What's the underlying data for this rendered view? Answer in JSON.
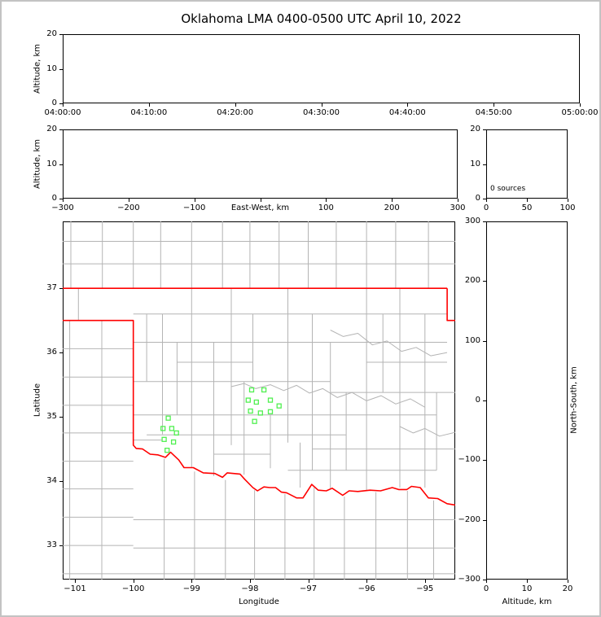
{
  "title": "Oklahoma LMA 0400-0500 UTC April 10, 2022",
  "colors": {
    "state_border": "#ff0000",
    "county_line": "#b4b4b4",
    "station_marker": "#50f050",
    "axis": "#000000",
    "figure_border": "#c3c3c3"
  },
  "chart_data": [
    {
      "id": "time_height",
      "type": "scatter",
      "ylabel": "Altitude, km",
      "xmin": 0,
      "xmax": 3600,
      "ymin": 0,
      "ymax": 20,
      "xticks": [
        {
          "v": 0,
          "label": "04:00:00"
        },
        {
          "v": 600,
          "label": "04:10:00"
        },
        {
          "v": 1200,
          "label": "04:20:00"
        },
        {
          "v": 1800,
          "label": "04:30:00"
        },
        {
          "v": 2400,
          "label": "04:40:00"
        },
        {
          "v": 3000,
          "label": "04:50:00"
        },
        {
          "v": 3600,
          "label": "05:00:00"
        }
      ],
      "yticks": [
        {
          "v": 0,
          "label": "0"
        },
        {
          "v": 10,
          "label": "10"
        },
        {
          "v": 20,
          "label": "20"
        }
      ],
      "points": []
    },
    {
      "id": "ew_height",
      "type": "scatter",
      "xlabel_inline": "East-West, km",
      "xlabel_inline_at": 0,
      "ylabel": "Altitude, km",
      "xmin": -300,
      "xmax": 300,
      "ymin": 0,
      "ymax": 20,
      "xticks": [
        {
          "v": -300,
          "label": "−300"
        },
        {
          "v": -200,
          "label": "−200"
        },
        {
          "v": -100,
          "label": "−100"
        },
        {
          "v": 0,
          "label": null
        },
        {
          "v": 100,
          "label": "100"
        },
        {
          "v": 200,
          "label": "200"
        },
        {
          "v": 300,
          "label": "300"
        }
      ],
      "yticks": [
        {
          "v": 0,
          "label": "0"
        },
        {
          "v": 10,
          "label": "10"
        },
        {
          "v": 20,
          "label": "20"
        }
      ],
      "points": []
    },
    {
      "id": "hist",
      "type": "line",
      "xmin": 0,
      "xmax": 100,
      "ymin": 0,
      "ymax": 20,
      "xticks": [
        {
          "v": 0,
          "label": "0"
        },
        {
          "v": 50,
          "label": "50"
        },
        {
          "v": 100,
          "label": "100"
        }
      ],
      "yticks": [
        {
          "v": 0,
          "label": "0"
        },
        {
          "v": 10,
          "label": "10"
        },
        {
          "v": 20,
          "label": "20"
        }
      ],
      "annotation": "0 sources",
      "points": []
    },
    {
      "id": "map",
      "type": "scatter",
      "xlabel": "Longitude",
      "ylabel": "Latitude",
      "xmin": -101.21,
      "xmax": -94.48,
      "ymin": 32.47,
      "ymax": 38.04,
      "xticks": [
        {
          "v": -101,
          "label": "−101"
        },
        {
          "v": -100,
          "label": "−100"
        },
        {
          "v": -99,
          "label": "−99"
        },
        {
          "v": -98,
          "label": "−98"
        },
        {
          "v": -97,
          "label": "−97"
        },
        {
          "v": -96,
          "label": "−96"
        },
        {
          "v": -95,
          "label": "−95"
        }
      ],
      "yticks": [
        {
          "v": 33,
          "label": "33"
        },
        {
          "v": 34,
          "label": "34"
        },
        {
          "v": 35,
          "label": "35"
        },
        {
          "v": 36,
          "label": "36"
        },
        {
          "v": 37,
          "label": "37"
        }
      ],
      "stations": [
        [
          -97.97,
          35.42
        ],
        [
          -97.76,
          35.42
        ],
        [
          -98.03,
          35.26
        ],
        [
          -97.89,
          35.23
        ],
        [
          -97.65,
          35.26
        ],
        [
          -97.99,
          35.09
        ],
        [
          -97.82,
          35.06
        ],
        [
          -97.65,
          35.08
        ],
        [
          -97.5,
          35.17
        ],
        [
          -97.92,
          34.93
        ],
        [
          -99.4,
          34.98
        ],
        [
          -99.49,
          34.82
        ],
        [
          -99.34,
          34.82
        ],
        [
          -99.26,
          34.75
        ],
        [
          -99.47,
          34.65
        ],
        [
          -99.31,
          34.61
        ],
        [
          -99.42,
          34.48
        ]
      ],
      "state_border": [
        [
          [
            -101.21,
            37.0
          ],
          [
            -94.618,
            37.0
          ]
        ],
        [
          [
            -94.618,
            37.0
          ],
          [
            -94.618,
            36.5
          ],
          [
            -94.48,
            36.5
          ]
        ],
        [
          [
            -101.21,
            36.5
          ],
          [
            -100.0,
            36.5
          ],
          [
            -100.0,
            34.56
          ],
          [
            -99.95,
            34.51
          ],
          [
            -99.84,
            34.5
          ],
          [
            -99.71,
            34.42
          ],
          [
            -99.58,
            34.41
          ],
          [
            -99.45,
            34.37
          ],
          [
            -99.36,
            34.45
          ],
          [
            -99.22,
            34.33
          ],
          [
            -99.13,
            34.21
          ],
          [
            -98.97,
            34.21
          ],
          [
            -98.8,
            34.13
          ],
          [
            -98.6,
            34.12
          ],
          [
            -98.47,
            34.06
          ],
          [
            -98.39,
            34.13
          ],
          [
            -98.17,
            34.11
          ],
          [
            -98.09,
            34.03
          ],
          [
            -97.95,
            33.9
          ],
          [
            -97.87,
            33.85
          ],
          [
            -97.76,
            33.91
          ],
          [
            -97.66,
            33.9
          ],
          [
            -97.56,
            33.9
          ],
          [
            -97.46,
            33.83
          ],
          [
            -97.37,
            33.82
          ],
          [
            -97.2,
            33.74
          ],
          [
            -97.09,
            33.74
          ],
          [
            -96.94,
            33.95
          ],
          [
            -96.83,
            33.86
          ],
          [
            -96.69,
            33.85
          ],
          [
            -96.59,
            33.89
          ],
          [
            -96.41,
            33.78
          ],
          [
            -96.3,
            33.85
          ],
          [
            -96.15,
            33.84
          ],
          [
            -95.94,
            33.86
          ],
          [
            -95.76,
            33.85
          ],
          [
            -95.56,
            33.9
          ],
          [
            -95.45,
            33.87
          ],
          [
            -95.31,
            33.87
          ],
          [
            -95.23,
            33.92
          ],
          [
            -95.08,
            33.9
          ],
          [
            -94.94,
            33.74
          ],
          [
            -94.78,
            33.73
          ],
          [
            -94.62,
            33.65
          ],
          [
            -94.48,
            33.63
          ]
        ]
      ],
      "county_v": [
        [
          -101.07,
          37.0,
          38.04
        ],
        [
          -100.53,
          37.0,
          38.04
        ],
        [
          -100.0,
          37.0,
          38.04
        ],
        [
          -99.53,
          37.0,
          38.04
        ],
        [
          -99.0,
          37.0,
          38.04
        ],
        [
          -98.47,
          37.0,
          38.04
        ],
        [
          -98.0,
          37.0,
          38.04
        ],
        [
          -97.5,
          37.0,
          38.04
        ],
        [
          -97.0,
          37.0,
          38.04
        ],
        [
          -96.52,
          37.0,
          38.04
        ],
        [
          -96.0,
          37.0,
          38.04
        ],
        [
          -95.5,
          37.0,
          38.04
        ],
        [
          -94.94,
          37.0,
          38.04
        ],
        [
          -100.94,
          36.5,
          37.0
        ],
        [
          -101.09,
          32.47,
          36.5
        ],
        [
          -100.54,
          32.47,
          36.5
        ],
        [
          -99.47,
          32.47,
          34.35
        ],
        [
          -98.95,
          32.47,
          34.15
        ],
        [
          -98.42,
          32.47,
          34.02
        ],
        [
          -97.92,
          32.47,
          33.86
        ],
        [
          -97.4,
          32.47,
          33.8
        ],
        [
          -96.9,
          32.47,
          33.9
        ],
        [
          -96.38,
          32.47,
          33.76
        ],
        [
          -95.84,
          32.47,
          33.83
        ],
        [
          -95.3,
          32.47,
          33.85
        ],
        [
          -94.85,
          32.47,
          33.7
        ],
        [
          -99.77,
          35.55,
          36.6
        ],
        [
          -99.5,
          34.73,
          36.6
        ],
        [
          -99.25,
          35.03,
          36.16
        ],
        [
          -99.0,
          34.21,
          37.0
        ],
        [
          -98.62,
          34.08,
          36.16
        ],
        [
          -98.32,
          34.56,
          37.0
        ],
        [
          -98.1,
          34.1,
          35.55
        ],
        [
          -97.95,
          35.55,
          36.6
        ],
        [
          -97.65,
          34.2,
          35.03
        ],
        [
          -97.35,
          34.6,
          37.0
        ],
        [
          -97.14,
          33.9,
          34.6
        ],
        [
          -96.93,
          34.17,
          36.6
        ],
        [
          -96.62,
          33.87,
          36.16
        ],
        [
          -96.35,
          34.17,
          35.38
        ],
        [
          -96.0,
          33.85,
          37.0
        ],
        [
          -95.72,
          35.38,
          36.6
        ],
        [
          -95.43,
          33.9,
          37.0
        ],
        [
          -95.0,
          33.9,
          36.6
        ],
        [
          -94.8,
          34.17,
          35.38
        ]
      ],
      "county_h": [
        [
          37.38,
          -101.21,
          -94.48
        ],
        [
          37.73,
          -101.21,
          -94.48
        ],
        [
          36.06,
          -101.21,
          -100.0
        ],
        [
          35.62,
          -101.21,
          -100.0
        ],
        [
          35.18,
          -101.21,
          -100.0
        ],
        [
          34.75,
          -101.21,
          -100.0
        ],
        [
          34.31,
          -101.21,
          -100.0
        ],
        [
          33.88,
          -101.21,
          -100.0
        ],
        [
          33.44,
          -101.21,
          -100.0
        ],
        [
          33.0,
          -101.21,
          -100.0
        ],
        [
          32.56,
          -101.21,
          -100.0
        ],
        [
          33.4,
          -100.0,
          -94.48
        ],
        [
          32.96,
          -100.0,
          -94.48
        ],
        [
          32.56,
          -100.0,
          -94.48
        ],
        [
          36.6,
          -100.0,
          -94.62
        ],
        [
          36.16,
          -100.0,
          -94.62
        ],
        [
          35.85,
          -99.25,
          -97.95
        ],
        [
          35.85,
          -96.0,
          -94.62
        ],
        [
          35.55,
          -100.0,
          -96.62
        ],
        [
          35.38,
          -96.62,
          -94.48
        ],
        [
          35.03,
          -100.0,
          -94.8
        ],
        [
          34.72,
          -99.77,
          -96.35
        ],
        [
          34.5,
          -96.93,
          -94.48
        ],
        [
          34.17,
          -97.35,
          -94.8
        ],
        [
          34.42,
          -98.62,
          -97.65
        ],
        [
          34.64,
          -100.0,
          -99.5
        ]
      ],
      "county_paths": [
        [
          [
            -98.32,
            35.47
          ],
          [
            -98.1,
            35.52
          ],
          [
            -97.9,
            35.44
          ],
          [
            -97.65,
            35.5
          ],
          [
            -97.42,
            35.41
          ],
          [
            -97.2,
            35.49
          ],
          [
            -96.98,
            35.37
          ],
          [
            -96.75,
            35.44
          ],
          [
            -96.5,
            35.3
          ],
          [
            -96.25,
            35.38
          ],
          [
            -96.0,
            35.25
          ],
          [
            -95.75,
            35.33
          ],
          [
            -95.5,
            35.2
          ],
          [
            -95.25,
            35.28
          ],
          [
            -95.0,
            35.15
          ]
        ],
        [
          [
            -96.62,
            36.35
          ],
          [
            -96.4,
            36.25
          ],
          [
            -96.15,
            36.3
          ],
          [
            -95.9,
            36.12
          ],
          [
            -95.65,
            36.18
          ],
          [
            -95.4,
            36.02
          ],
          [
            -95.15,
            36.08
          ],
          [
            -94.9,
            35.95
          ],
          [
            -94.62,
            36.0
          ]
        ],
        [
          [
            -95.43,
            34.85
          ],
          [
            -95.2,
            34.75
          ],
          [
            -95.0,
            34.82
          ],
          [
            -94.75,
            34.7
          ],
          [
            -94.48,
            34.76
          ]
        ]
      ]
    },
    {
      "id": "ns_height",
      "type": "scatter",
      "xlabel": "Altitude, km",
      "ylabel_right": "North-South, km",
      "xmin": 0,
      "xmax": 20,
      "ymin": -300,
      "ymax": 300,
      "xticks": [
        {
          "v": 0,
          "label": "0"
        },
        {
          "v": 10,
          "label": "10"
        },
        {
          "v": 20,
          "label": "20"
        }
      ],
      "yticks": [
        {
          "v": 300,
          "label": "300"
        },
        {
          "v": 200,
          "label": "200"
        },
        {
          "v": 100,
          "label": "100"
        },
        {
          "v": 0,
          "label": "0"
        },
        {
          "v": -100,
          "label": "−100"
        },
        {
          "v": -200,
          "label": "−200"
        },
        {
          "v": -300,
          "label": "−300"
        }
      ],
      "points": []
    }
  ]
}
